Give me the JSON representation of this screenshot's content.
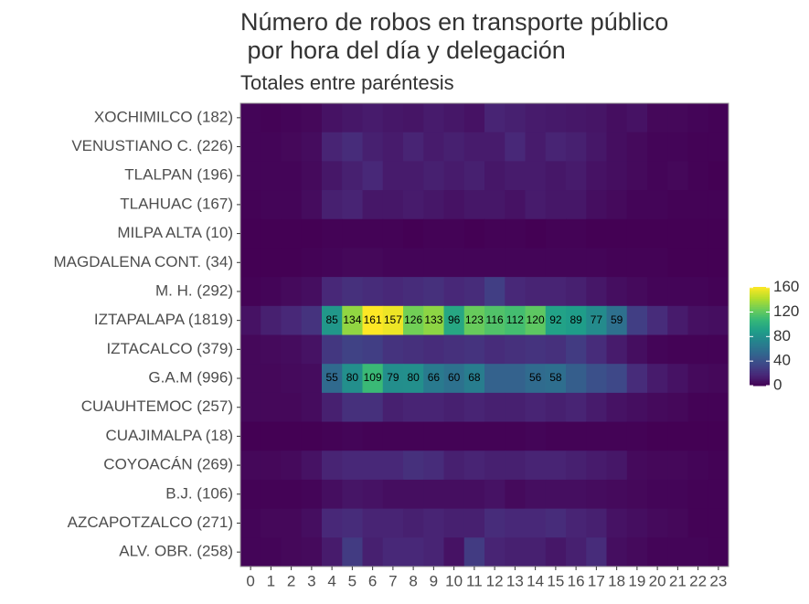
{
  "chart_data": {
    "type": "heatmap",
    "title": "Número de robos en transporte público\n por hora del día y delegación",
    "subtitle": "Totales entre paréntesis",
    "x": [
      "0",
      "1",
      "2",
      "3",
      "4",
      "5",
      "6",
      "7",
      "8",
      "9",
      "10",
      "11",
      "12",
      "13",
      "14",
      "15",
      "16",
      "17",
      "18",
      "19",
      "20",
      "21",
      "22",
      "23"
    ],
    "y": [
      "XOCHIMILCO (182)",
      "VENUSTIANO C. (226)",
      "TLALPAN (196)",
      "TLAHUAC (167)",
      "MILPA ALTA (10)",
      "MAGDALENA CONT. (34)",
      "M. H. (292)",
      "IZTAPALAPA (1819)",
      "IZTACALCO (379)",
      "G.A.M (996)",
      "CUAUHTEMOC (257)",
      "CUAJIMALPA (18)",
      "COYOACÁN (269)",
      "B.J. (106)",
      "AZCAPOTZALCO (271)",
      "ALV. OBR. (258)"
    ],
    "values": [
      [
        2,
        1,
        2,
        3,
        8,
        10,
        12,
        10,
        9,
        12,
        10,
        8,
        16,
        14,
        12,
        11,
        10,
        9,
        6,
        8,
        3,
        3,
        2,
        1
      ],
      [
        2,
        2,
        3,
        5,
        16,
        20,
        14,
        12,
        16,
        12,
        14,
        12,
        12,
        18,
        12,
        16,
        14,
        10,
        6,
        4,
        2,
        2,
        1,
        1
      ],
      [
        2,
        2,
        2,
        4,
        10,
        14,
        18,
        12,
        12,
        14,
        12,
        14,
        10,
        12,
        12,
        10,
        12,
        8,
        6,
        4,
        2,
        3,
        1,
        0
      ],
      [
        1,
        2,
        2,
        5,
        14,
        16,
        10,
        10,
        12,
        10,
        8,
        10,
        10,
        8,
        12,
        10,
        10,
        6,
        4,
        2,
        2,
        1,
        1,
        1
      ],
      [
        0,
        0,
        0,
        0,
        1,
        1,
        1,
        1,
        0,
        1,
        1,
        0,
        1,
        1,
        0,
        1,
        1,
        0,
        0,
        0,
        0,
        0,
        0,
        0
      ],
      [
        0,
        0,
        0,
        1,
        2,
        3,
        3,
        2,
        2,
        2,
        2,
        2,
        2,
        2,
        2,
        2,
        2,
        2,
        1,
        1,
        1,
        0,
        0,
        0
      ],
      [
        1,
        2,
        4,
        6,
        18,
        22,
        20,
        18,
        20,
        22,
        18,
        20,
        30,
        18,
        16,
        16,
        14,
        10,
        6,
        4,
        2,
        2,
        2,
        1
      ],
      [
        8,
        14,
        18,
        24,
        85,
        134,
        161,
        157,
        126,
        133,
        96,
        123,
        116,
        112,
        120,
        92,
        89,
        77,
        59,
        30,
        20,
        12,
        7,
        6
      ],
      [
        3,
        4,
        5,
        8,
        26,
        32,
        30,
        24,
        22,
        20,
        22,
        24,
        20,
        22,
        24,
        22,
        28,
        20,
        12,
        6,
        2,
        1,
        1,
        1
      ],
      [
        3,
        3,
        4,
        5,
        55,
        80,
        109,
        79,
        80,
        66,
        60,
        68,
        50,
        50,
        56,
        58,
        48,
        40,
        35,
        20,
        12,
        8,
        4,
        3
      ],
      [
        3,
        3,
        3,
        5,
        14,
        22,
        22,
        14,
        16,
        16,
        14,
        16,
        14,
        14,
        16,
        14,
        16,
        12,
        8,
        6,
        4,
        3,
        1,
        1
      ],
      [
        0,
        0,
        0,
        0,
        1,
        2,
        1,
        1,
        1,
        1,
        1,
        1,
        1,
        1,
        2,
        1,
        1,
        1,
        1,
        1,
        0,
        0,
        0,
        0
      ],
      [
        3,
        3,
        4,
        8,
        16,
        18,
        18,
        18,
        22,
        20,
        14,
        16,
        14,
        14,
        16,
        16,
        14,
        12,
        10,
        4,
        3,
        3,
        2,
        1
      ],
      [
        1,
        1,
        1,
        2,
        6,
        9,
        8,
        6,
        6,
        6,
        6,
        6,
        8,
        4,
        6,
        6,
        6,
        5,
        4,
        3,
        2,
        2,
        1,
        1
      ],
      [
        2,
        3,
        3,
        6,
        18,
        20,
        16,
        16,
        14,
        16,
        14,
        14,
        20,
        18,
        18,
        20,
        16,
        14,
        8,
        6,
        4,
        3,
        1,
        1
      ],
      [
        2,
        2,
        3,
        4,
        12,
        28,
        14,
        18,
        18,
        16,
        8,
        28,
        16,
        14,
        14,
        10,
        14,
        20,
        6,
        4,
        2,
        2,
        2,
        1
      ]
    ],
    "value_labels": [
      null,
      null,
      null,
      null,
      null,
      null,
      null,
      [
        null,
        null,
        null,
        null,
        "85",
        "134",
        "161",
        "157",
        "126",
        "133",
        "96",
        "123",
        "116",
        "112",
        "120",
        "92",
        "89",
        "77",
        "59",
        null,
        null,
        null,
        null,
        null
      ],
      null,
      [
        null,
        null,
        null,
        null,
        "55",
        "80",
        "109",
        "79",
        "80",
        "66",
        "60",
        "68",
        null,
        null,
        "56",
        "58",
        null,
        null,
        null,
        null,
        null,
        null,
        null,
        null
      ],
      null,
      null,
      null,
      null,
      null,
      null
    ],
    "clim": [
      0,
      161
    ],
    "cticks": [
      0,
      40,
      80,
      120,
      160
    ],
    "colors": [
      "#440154",
      "#482878",
      "#3e4989",
      "#31688e",
      "#26828e",
      "#1f9e89",
      "#35b779",
      "#6ece58",
      "#b5de2b",
      "#fde725"
    ]
  }
}
